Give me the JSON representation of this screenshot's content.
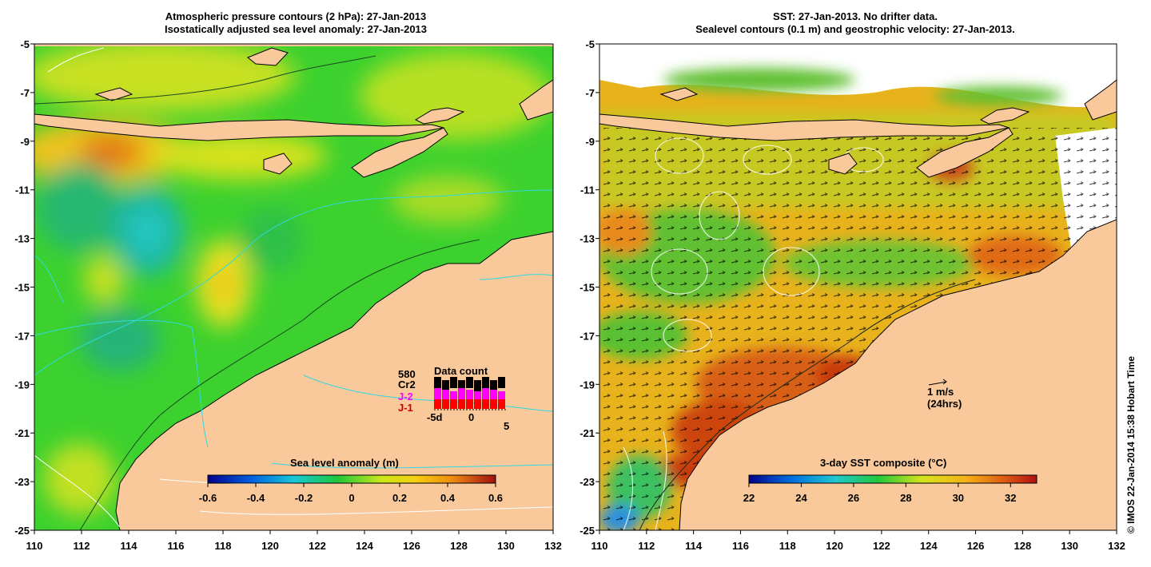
{
  "left_panel": {
    "title_line1": "Atmospheric pressure contours (2 hPa): 27-Jan-2013",
    "title_line2": "Isostatically adjusted sea level anomaly: 27-Jan-2013",
    "colorbar_title": "Sea level anomaly (m)",
    "colorbar_ticks": [
      "-0.6",
      "-0.4",
      "-0.2",
      "0",
      "0.2",
      "0.4",
      "0.6"
    ],
    "colorbar_range": [
      -0.6,
      0.6
    ],
    "data_count": {
      "title": "Data count",
      "labels": {
        "s580": "580",
        "cr2": "Cr2",
        "j2": "J-2",
        "j1": "J-1"
      },
      "axis_labels": [
        "-5d",
        "0",
        "5"
      ],
      "colors": {
        "j2": "#ff00ff",
        "j1": "#ff0000"
      }
    }
  },
  "right_panel": {
    "title_line1": "SST: 27-Jan-2013. No drifter data.",
    "title_line2": "Sealevel contours (0.1 m) and geostrophic velocity: 27-Jan-2013.",
    "colorbar_title": "3-day SST composite (°C)",
    "colorbar_ticks": [
      "22",
      "24",
      "26",
      "28",
      "30",
      "32"
    ],
    "colorbar_range": [
      22,
      33
    ],
    "velocity_scale": {
      "label1": "1 m/s",
      "label2": "(24hrs)"
    }
  },
  "axes": {
    "lon_ticks": [
      "110",
      "112",
      "114",
      "116",
      "118",
      "120",
      "122",
      "124",
      "126",
      "128",
      "130",
      "132"
    ],
    "lat_ticks": [
      "-5",
      "-7",
      "-9",
      "-11",
      "-13",
      "-15",
      "-17",
      "-19",
      "-21",
      "-23",
      "-25"
    ],
    "lon_range": [
      110,
      132
    ],
    "lat_range": [
      -25,
      -5
    ]
  },
  "credit": "© IMOS 22-Jan-2014 15:38 Hobart Time",
  "colors": {
    "land": "#f9c99b",
    "sla_green": "#3cd12f",
    "sst_orange": "#f2a21b",
    "contour_cyan": "#2fd8e0"
  }
}
